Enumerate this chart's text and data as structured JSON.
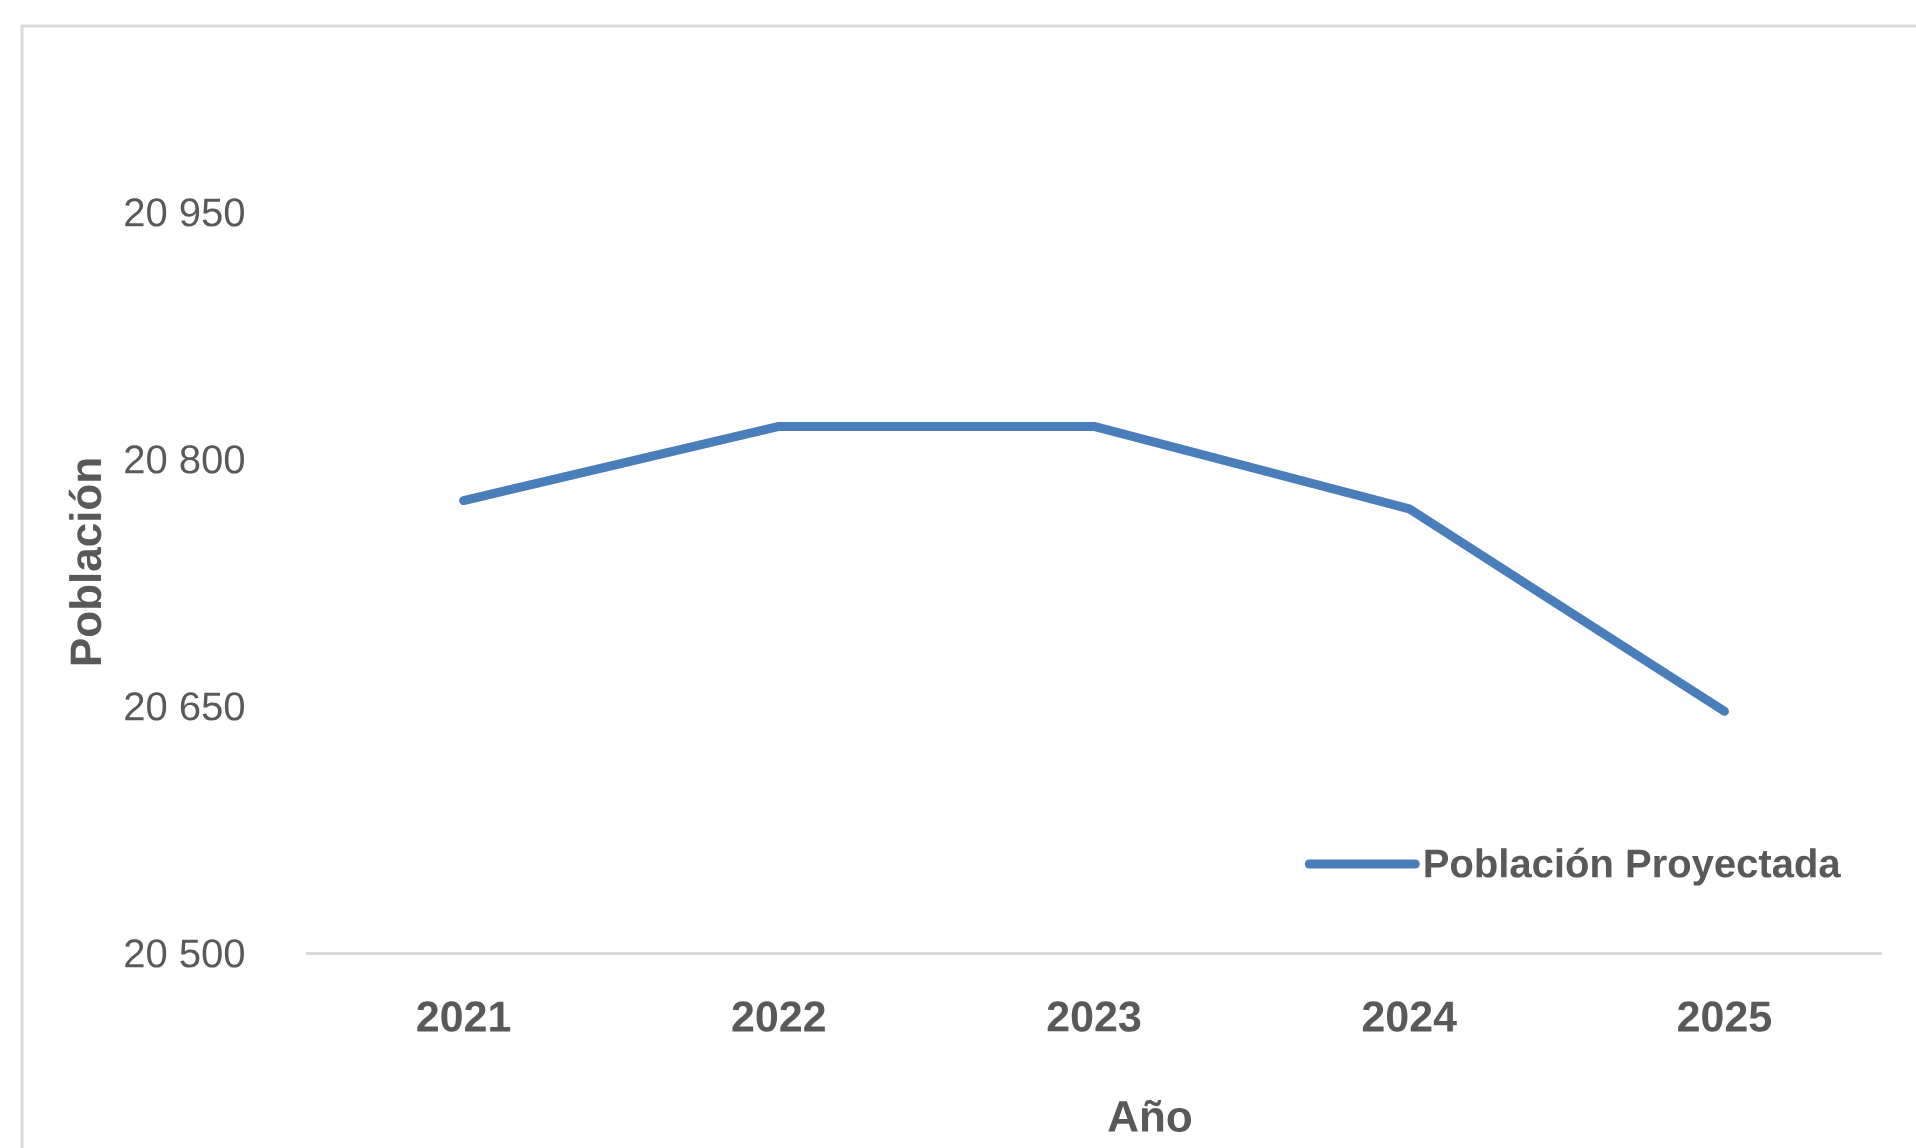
{
  "chart_data": {
    "type": "line",
    "xlabel": "Año",
    "ylabel": "Población",
    "categories": [
      "2021",
      "2022",
      "2023",
      "2024",
      "2025"
    ],
    "series": [
      {
        "name": "Población Proyectada",
        "color": "#4a7ebb",
        "values": [
          20775,
          20820,
          20820,
          20770,
          20647
        ]
      }
    ],
    "ylim": [
      20500,
      20950
    ],
    "yticks": [
      {
        "value": 20500,
        "label": "20 500"
      },
      {
        "value": 20650,
        "label": "20 650"
      },
      {
        "value": 20800,
        "label": "20 800"
      },
      {
        "value": 20950,
        "label": "20 950"
      }
    ],
    "legend": "bottom right",
    "marker": "none",
    "line_style": "solid"
  }
}
